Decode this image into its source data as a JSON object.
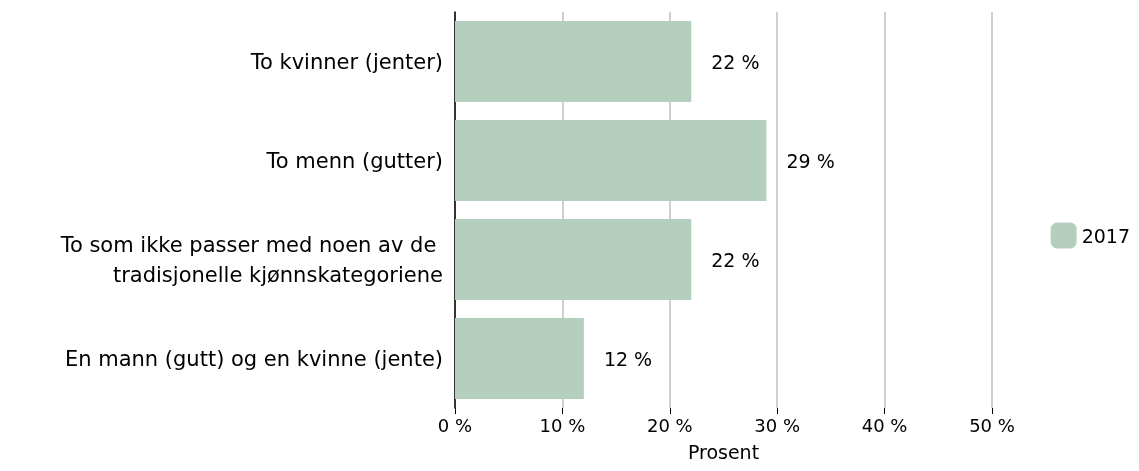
{
  "chart_data": {
    "type": "bar",
    "orientation": "horizontal",
    "xlabel": "Prosent",
    "categories": [
      "To kvinner (jenter)",
      "To menn (gutter)",
      "To som ikke passer med noen av de tradisjonelle kjønnskategoriene",
      "En mann (gutt) og en kvinne (jente)"
    ],
    "series": [
      {
        "name": "2017",
        "color": "#b5cfbe",
        "values": [
          22,
          29,
          22,
          12
        ],
        "value_labels": [
          "22 %",
          "29 %",
          "22 %",
          "12 %"
        ]
      }
    ],
    "xlim": [
      0,
      50
    ],
    "xticks": [
      {
        "value": 0,
        "label": "0 %"
      },
      {
        "value": 10,
        "label": "10 %"
      },
      {
        "value": 20,
        "label": "20 %"
      },
      {
        "value": 30,
        "label": "30 %"
      },
      {
        "value": 40,
        "label": "40 %"
      },
      {
        "value": 50,
        "label": "50 %"
      }
    ],
    "grid": "x",
    "legend": "right"
  }
}
